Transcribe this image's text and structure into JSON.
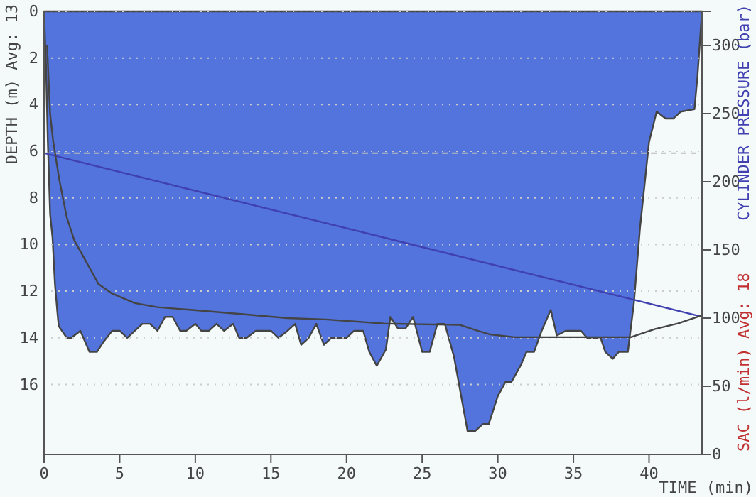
{
  "chart_data": {
    "type": "area",
    "xlabel": "TIME (min)",
    "ylabel": "DEPTH (m) Avg: 13",
    "y2label": "CYLINDER PRESSURE (bar)",
    "annotations": [
      "SAC (l/min) Avg: 18"
    ],
    "xlim": [
      0,
      43.5
    ],
    "xticks": [
      0,
      5,
      10,
      15,
      20,
      25,
      30,
      35,
      40
    ],
    "ylim": [
      19,
      0
    ],
    "yticks": [
      0,
      2,
      4,
      6,
      8,
      10,
      12,
      14,
      16
    ],
    "y2lim": [
      0,
      325
    ],
    "y2ticks": [
      0,
      50,
      100,
      150,
      200,
      250,
      300
    ],
    "grid": "y",
    "marker": "none",
    "ref_lines": [
      {
        "axis": "y2",
        "value": 221,
        "color": "#bbbbbb",
        "line_style": "dashed"
      }
    ],
    "series": [
      {
        "color": "#5274dc",
        "x": [
          0,
          0.13,
          0.25,
          0.4,
          0.56,
          0.72,
          0.88,
          0.97,
          1.5,
          1.8,
          2.4,
          3.0,
          3.5,
          3.9,
          4.5,
          5.0,
          5.5,
          6.0,
          6.5,
          7.0,
          7.5,
          8.0,
          8.5,
          9.0,
          9.4,
          10.0,
          10.4,
          10.9,
          11.4,
          11.9,
          12.5,
          12.9,
          13.4,
          14.0,
          15.0,
          15.5,
          16.1,
          16.6,
          17.0,
          17.5,
          18.0,
          18.5,
          19.0,
          20.0,
          20.5,
          21.1,
          21.5,
          22.0,
          22.6,
          22.9,
          23.4,
          23.9,
          24.4,
          25.0,
          25.5,
          26.0,
          26.5,
          27.1,
          28.0,
          28.5,
          29.0,
          29.4,
          30.0,
          30.5,
          30.9,
          31.5,
          31.9,
          32.4,
          32.9,
          33.5,
          33.9,
          34.5,
          35.5,
          35.9,
          36.8,
          37.1,
          37.6,
          38.0,
          38.6,
          39.0,
          39.4,
          40.0,
          40.5,
          41.1,
          41.6,
          42.1,
          43.0,
          43.2,
          43.5
        ],
        "values": [
          0,
          2.4,
          5.6,
          8.7,
          9.7,
          11.7,
          12.9,
          13.5,
          14.0,
          14.0,
          13.7,
          14.6,
          14.6,
          14.2,
          13.7,
          13.7,
          14.0,
          13.7,
          13.4,
          13.4,
          13.7,
          13.1,
          13.1,
          13.7,
          13.7,
          13.4,
          13.7,
          13.7,
          13.4,
          13.7,
          13.4,
          14.0,
          14.0,
          13.7,
          13.7,
          14.0,
          13.7,
          13.4,
          14.3,
          14.0,
          13.4,
          14.3,
          14.0,
          14.0,
          13.7,
          13.7,
          14.6,
          15.2,
          14.5,
          13.1,
          13.6,
          13.6,
          13.1,
          14.6,
          14.6,
          13.4,
          13.4,
          14.8,
          18.0,
          18.0,
          17.7,
          17.7,
          16.5,
          15.9,
          15.9,
          15.2,
          14.6,
          14.6,
          13.7,
          12.8,
          13.9,
          13.7,
          13.7,
          14.0,
          14.0,
          14.6,
          14.9,
          14.6,
          14.6,
          12.5,
          9.3,
          5.6,
          4.3,
          4.6,
          4.6,
          4.3,
          4.2,
          2.8,
          0
        ]
      },
      {
        "type": "line",
        "axis": "y2",
        "color": "#4040b0",
        "x": [
          0,
          22.5,
          43.5
        ],
        "values": [
          221,
          159,
          101
        ]
      },
      {
        "type": "line",
        "axis": "y2",
        "color": "#444444",
        "x": [
          0.2,
          0.4,
          0.6,
          1.0,
          1.5,
          2.0,
          2.7,
          3.6,
          4.5,
          6.0,
          7.5,
          9.8,
          13.0,
          16.1,
          18.6,
          22.5,
          27.5,
          28.6,
          29.5,
          31.1,
          38.8,
          40.4,
          41.9,
          43.5
        ],
        "values": [
          300,
          250,
          230,
          202,
          174,
          157,
          143,
          125,
          118,
          111,
          108,
          106,
          103,
          100,
          99,
          96,
          95,
          91,
          88,
          86,
          86,
          92,
          96,
          102
        ]
      }
    ]
  }
}
